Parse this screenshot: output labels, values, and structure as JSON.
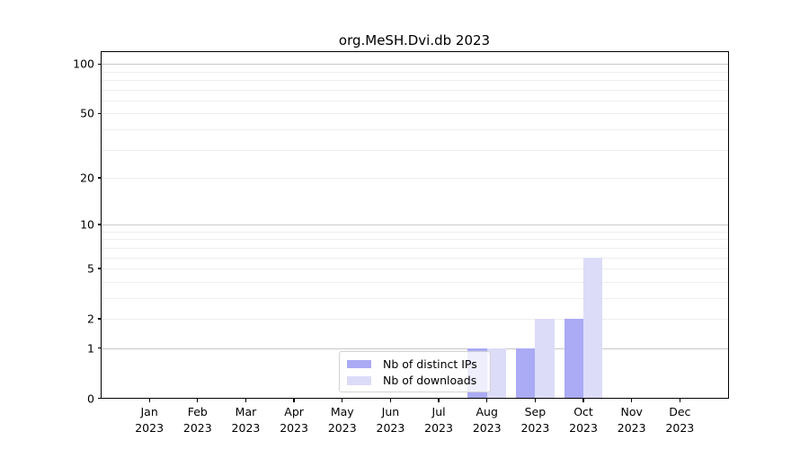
{
  "title": "org.MeSH.Dvi.db 2023",
  "chart_data": {
    "type": "bar",
    "scale": "log1p",
    "grid": true,
    "title": "org.MeSH.Dvi.db 2023",
    "xlabel": "",
    "ylabel": "",
    "categories": [
      "Jan 2023",
      "Feb 2023",
      "Mar 2023",
      "Apr 2023",
      "May 2023",
      "Jun 2023",
      "Jul 2023",
      "Aug 2023",
      "Sep 2023",
      "Oct 2023",
      "Nov 2023",
      "Dec 2023"
    ],
    "series": [
      {
        "name": "Nb of distinct IPs",
        "color": "#aaaaf5",
        "values": [
          0,
          0,
          0,
          0,
          0,
          0,
          0,
          1,
          1,
          2,
          0,
          0
        ]
      },
      {
        "name": "Nb of downloads",
        "color": "#dcdcf8",
        "values": [
          0,
          0,
          0,
          0,
          0,
          0,
          0,
          1,
          2,
          6,
          0,
          0
        ]
      }
    ],
    "y_tick_labels": [
      "0",
      "1",
      "2",
      "5",
      "10",
      "20",
      "50",
      "100"
    ],
    "y_tick_values": [
      0,
      1,
      2,
      5,
      10,
      20,
      50,
      100
    ],
    "major_gridlines": [
      1,
      10,
      100
    ],
    "minor_gridlines": [
      2,
      3,
      4,
      5,
      6,
      7,
      8,
      9,
      20,
      30,
      40,
      50,
      60,
      70,
      80,
      90
    ],
    "ylim": [
      0,
      118
    ],
    "legend_position": "lower center"
  },
  "colors": {
    "bar_distinct_ips": "#aaaaf5",
    "bar_downloads": "#dcdcf8",
    "grid_major": "#c8c8c8",
    "grid_minor": "#eeeeee",
    "axis": "#000000",
    "legend_border": "#d3d3d3",
    "legend_background": "rgba(255,255,255,0.8)"
  }
}
